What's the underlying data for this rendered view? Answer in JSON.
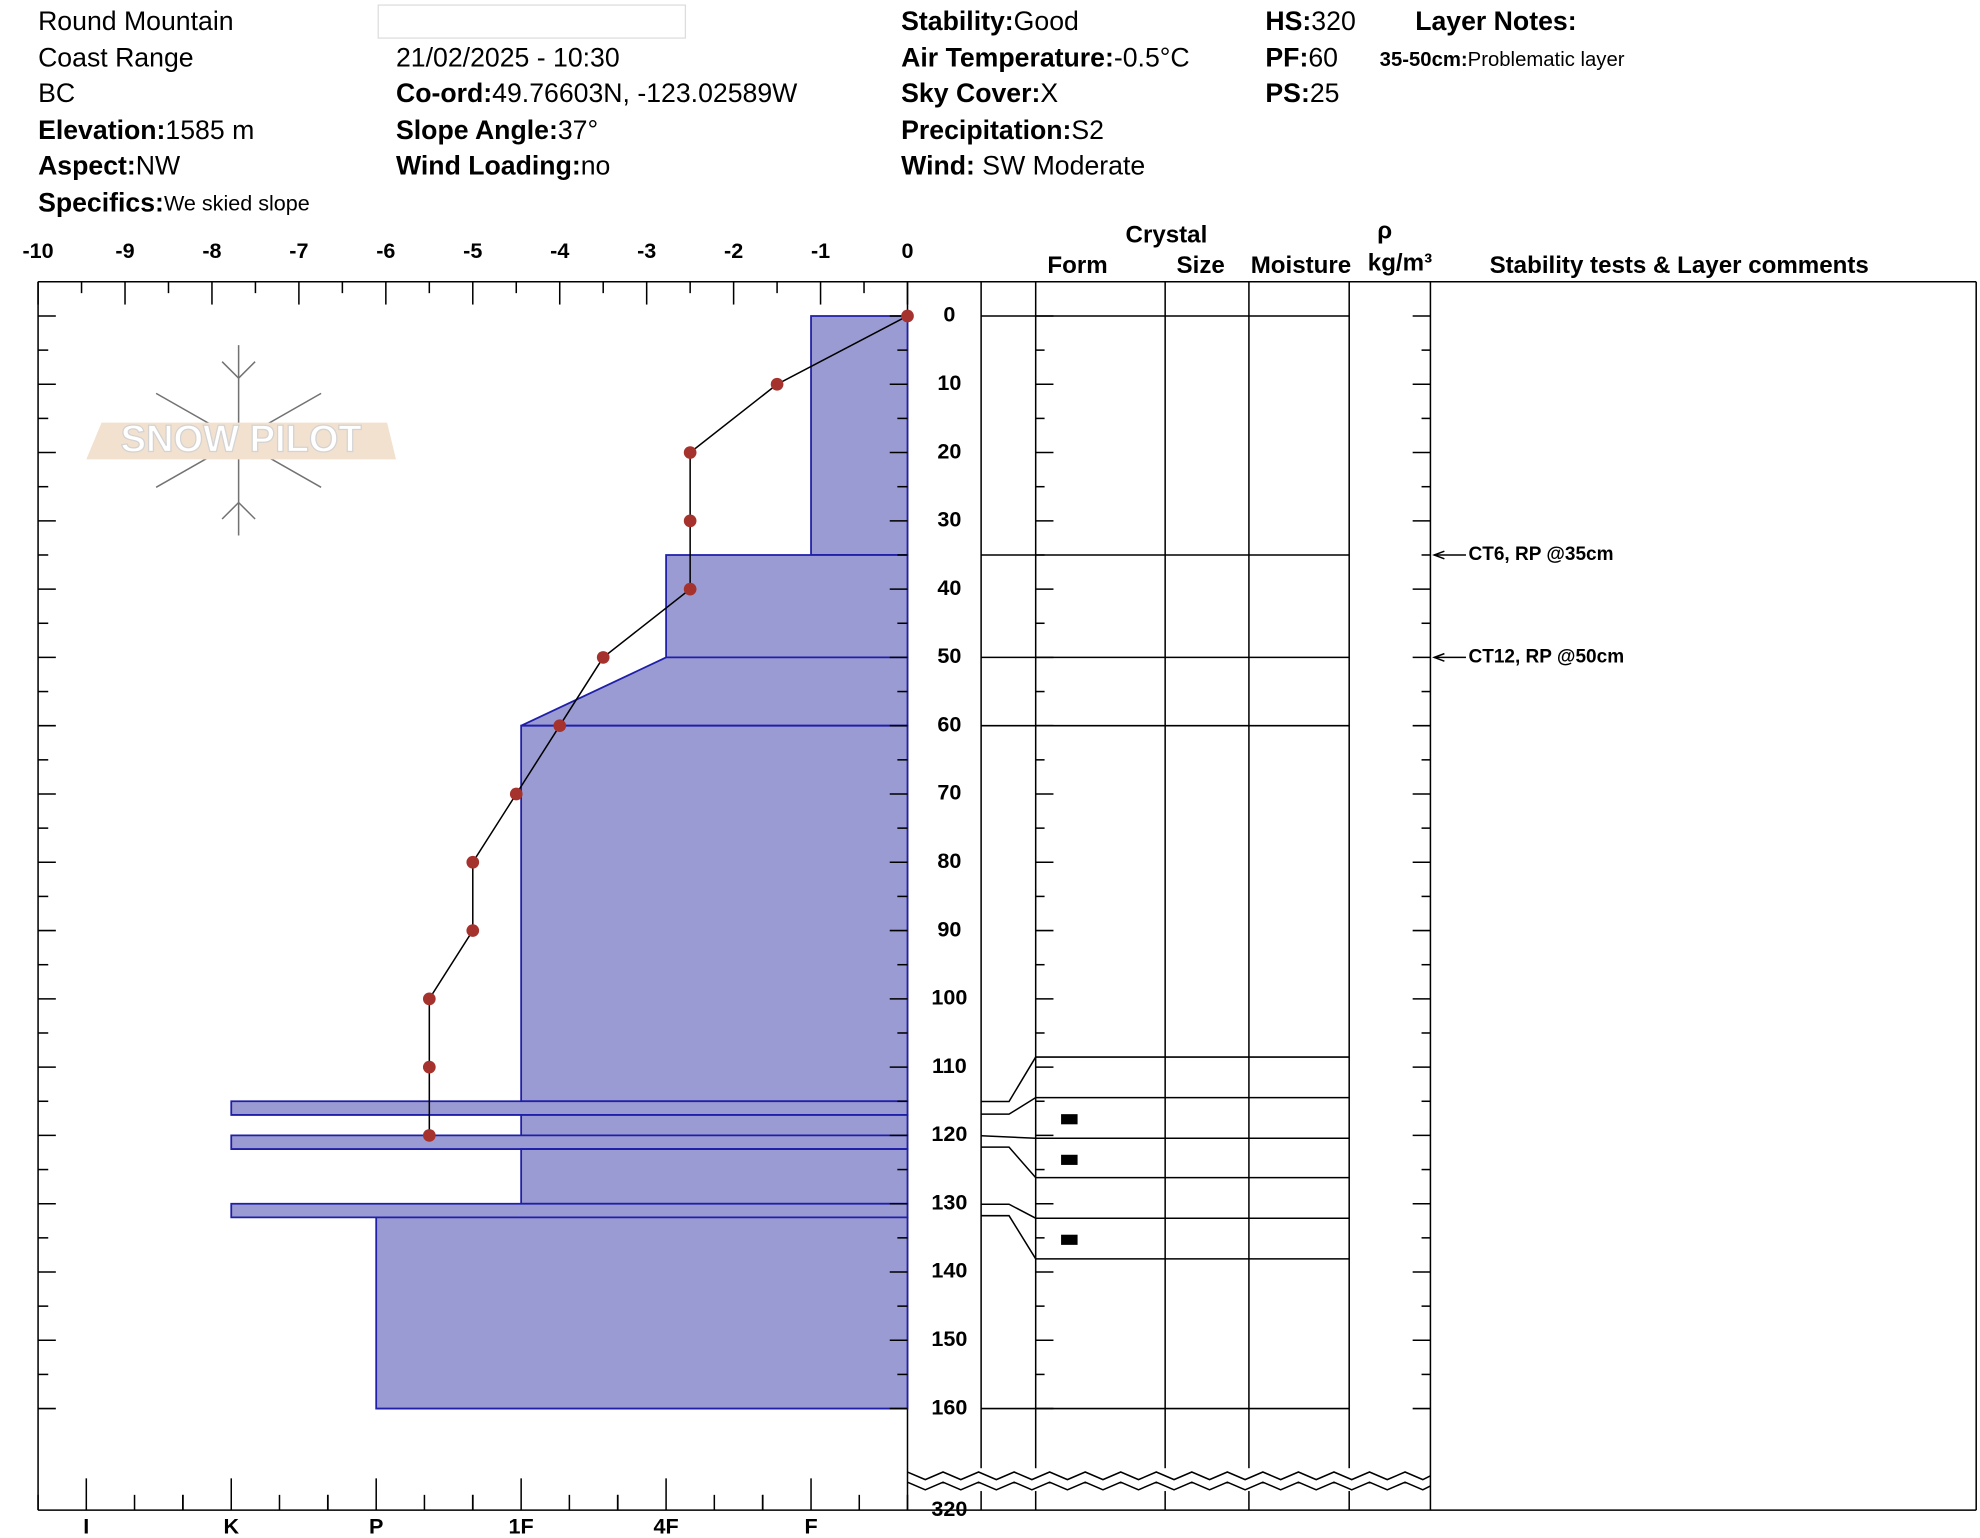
{
  "header": {
    "fields": [
      {
        "value": "Round Mountain"
      },
      {
        "value": "Coast Range"
      },
      {
        "value": "BC"
      },
      {
        "label": "Elevation:",
        "value": "1585 m"
      },
      {
        "label": "Aspect:",
        "value": "NW"
      },
      {
        "label": "Specifics:",
        "value": "We skied slope"
      },
      {
        "value": "21/02/2025 - 10:30"
      },
      {
        "label": "Co-ord:",
        "value": "49.76603N, -123.02589W"
      },
      {
        "label": "Slope Angle:",
        "value": "37°"
      },
      {
        "label": "Wind Loading:",
        "value": "no"
      },
      {
        "label": "Stability:",
        "value": "Good"
      },
      {
        "label": "Air Temperature:",
        "value": "-0.5°C"
      },
      {
        "label": "Sky Cover:",
        "value": "X"
      },
      {
        "label": "Precipitation:",
        "value": "S2"
      },
      {
        "label": "Wind:",
        "value": " SW Moderate"
      },
      {
        "label": "HS:",
        "value": "320"
      },
      {
        "label": "PF:",
        "value": "60"
      },
      {
        "label": "PS:",
        "value": "25"
      }
    ],
    "layer_notes_title": "Layer Notes:",
    "layer_notes": [
      {
        "label": "35-50cm:",
        "value": "Problematic layer"
      }
    ],
    "watermark": "SNOW PILOT"
  },
  "table_headers": {
    "crystal": "Crystal",
    "form": "Form",
    "size": "Size",
    "moisture": "Moisture",
    "rho": "ρ",
    "density_unit": "kg/m³",
    "comments": "Stability tests & Layer comments"
  },
  "chart_data": [
    {
      "type": "line",
      "color": "#a5322d",
      "depths": [
        0,
        10,
        20,
        30,
        40,
        50,
        60,
        70,
        80,
        90,
        100,
        110,
        120
      ],
      "values": [
        0,
        -1.5,
        -2.5,
        -2.5,
        -2.5,
        -3.5,
        -4,
        -4.5,
        -5,
        -5,
        -5.5,
        -5.5,
        -5.5
      ],
      "xlim": [
        -10,
        0
      ],
      "xticks": [
        -10,
        -9,
        -8,
        -7,
        -6,
        -5,
        -4,
        -3,
        -2,
        -1,
        0
      ],
      "ylim": [
        0,
        160
      ],
      "yticks": [
        0,
        10,
        20,
        30,
        40,
        50,
        60,
        70,
        80,
        90,
        100,
        110,
        120,
        130,
        140,
        150,
        160
      ],
      "break_tick": 320
    },
    {
      "type": "layers",
      "color": "#9b9bd3",
      "edge_color": "#1f1fa8",
      "categories": [
        "I",
        "K",
        "P",
        "1F",
        "4F",
        "F"
      ],
      "layers": [
        {
          "top": 0,
          "bottom": 35,
          "hardness": "F"
        },
        {
          "top": 35,
          "bottom": 50,
          "hardness": "4F"
        },
        {
          "top": 50,
          "bottom": 60,
          "hardness": "4F",
          "hardness_bottom": "1F"
        },
        {
          "top": 60,
          "bottom": 115,
          "hardness": "1F"
        },
        {
          "top": 115,
          "bottom": 117,
          "hardness": "K"
        },
        {
          "top": 117,
          "bottom": 120,
          "hardness": "1F"
        },
        {
          "top": 120,
          "bottom": 122,
          "hardness": "K"
        },
        {
          "top": 122,
          "bottom": 130,
          "hardness": "1F"
        },
        {
          "top": 130,
          "bottom": 132,
          "hardness": "K"
        },
        {
          "top": 132,
          "bottom": 160,
          "hardness": "P"
        }
      ],
      "comments": [
        {
          "depth": 35,
          "text": "CT6, RP @35cm"
        },
        {
          "depth": 50,
          "text": "CT12, RP @50cm"
        }
      ]
    }
  ]
}
